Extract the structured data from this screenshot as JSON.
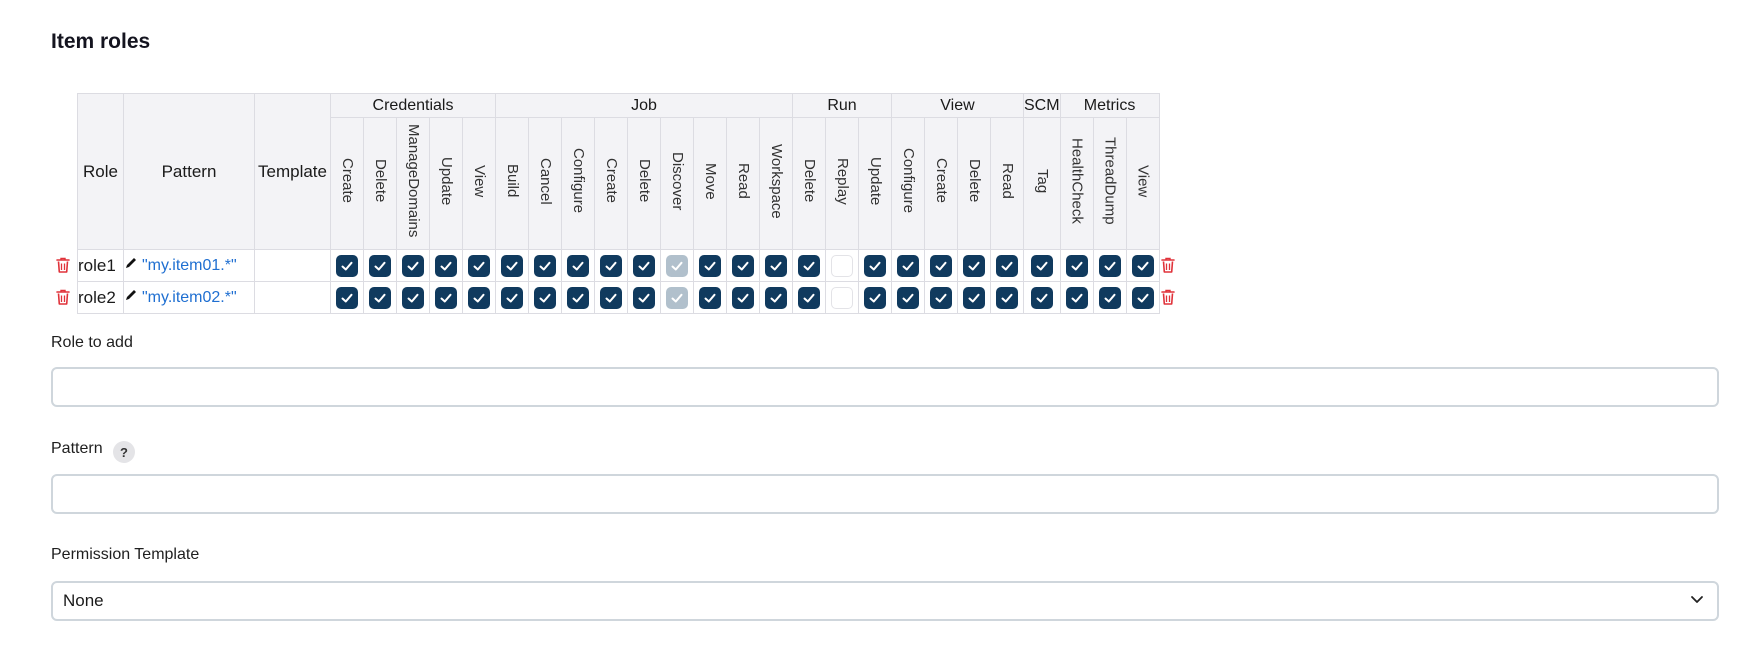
{
  "section_title": "Item roles",
  "table": {
    "headers": {
      "role": "Role",
      "pattern": "Pattern",
      "template": "Template"
    },
    "groups": [
      {
        "name": "Credentials",
        "permissions": [
          "Create",
          "Delete",
          "ManageDomains",
          "Update",
          "View"
        ]
      },
      {
        "name": "Job",
        "permissions": [
          "Build",
          "Cancel",
          "Configure",
          "Create",
          "Delete",
          "Discover",
          "Move",
          "Read",
          "Workspace"
        ]
      },
      {
        "name": "Run",
        "permissions": [
          "Delete",
          "Replay",
          "Update"
        ]
      },
      {
        "name": "View",
        "permissions": [
          "Configure",
          "Create",
          "Delete",
          "Read"
        ]
      },
      {
        "name": "SCM",
        "permissions": [
          "Tag"
        ]
      },
      {
        "name": "Metrics",
        "permissions": [
          "HealthCheck",
          "ThreadDump",
          "View"
        ]
      }
    ],
    "rows": [
      {
        "role": "role1",
        "pattern": "\"my.item01.*\"",
        "template": "",
        "states": [
          "on",
          "on",
          "on",
          "on",
          "on",
          "on",
          "on",
          "on",
          "on",
          "on",
          "disabled",
          "on",
          "on",
          "on",
          "on",
          "off",
          "on",
          "on",
          "on",
          "on",
          "on",
          "on",
          "on",
          "on",
          "on"
        ]
      },
      {
        "role": "role2",
        "pattern": "\"my.item02.*\"",
        "template": "",
        "states": [
          "on",
          "on",
          "on",
          "on",
          "on",
          "on",
          "on",
          "on",
          "on",
          "on",
          "disabled",
          "on",
          "on",
          "on",
          "on",
          "off",
          "on",
          "on",
          "on",
          "on",
          "on",
          "on",
          "on",
          "on",
          "on"
        ]
      }
    ]
  },
  "role_to_add": {
    "label": "Role to add",
    "value": "",
    "placeholder": ""
  },
  "pattern_field": {
    "label": "Pattern",
    "help": "?",
    "value": "",
    "placeholder": ""
  },
  "permission_template": {
    "label": "Permission Template",
    "selected": "None"
  },
  "icons": {
    "delete": "trash-icon",
    "edit": "pencil-icon",
    "check": "checkmark-icon",
    "help": "help-icon",
    "dropdown": "chevron-down-icon"
  },
  "colors": {
    "checkbox_on": "#103a5e",
    "checkbox_disabled": "#b1c0cc",
    "link": "#1f6fd1",
    "danger": "#e0323a"
  }
}
